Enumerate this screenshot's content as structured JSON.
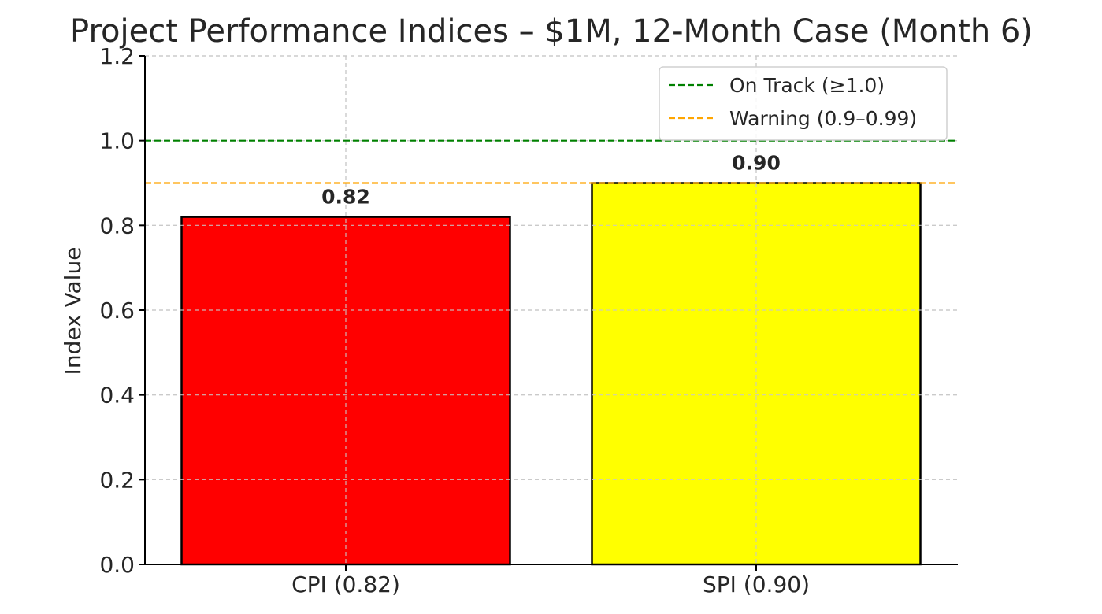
{
  "chart_data": {
    "type": "bar",
    "title": "Project Performance Indices – $1M, 12-Month Case (Month 6)",
    "xlabel": "",
    "ylabel": "Index Value",
    "categories": [
      "CPI (0.82)",
      "SPI (0.90)"
    ],
    "values": [
      0.82,
      0.9
    ],
    "data_labels": [
      "0.82",
      "0.90"
    ],
    "bar_colors": [
      "#ff0000",
      "#ffff00"
    ],
    "bar_edge_color": "#000000",
    "ylim": [
      0,
      1.2
    ],
    "yticks": [
      0.0,
      0.2,
      0.4,
      0.6,
      0.8,
      1.0,
      1.2
    ],
    "ytick_labels": [
      "0.0",
      "0.2",
      "0.4",
      "0.6",
      "0.8",
      "1.0",
      "1.2"
    ],
    "grid": true,
    "reference_lines": [
      {
        "label": "On Track (≥1.0)",
        "y": 1.0,
        "color": "#008000",
        "style": "dashed"
      },
      {
        "label": "Warning (0.9–0.99)",
        "y": 0.9,
        "color": "#ffa500",
        "style": "dashed"
      }
    ],
    "legend_position": "top-right"
  }
}
